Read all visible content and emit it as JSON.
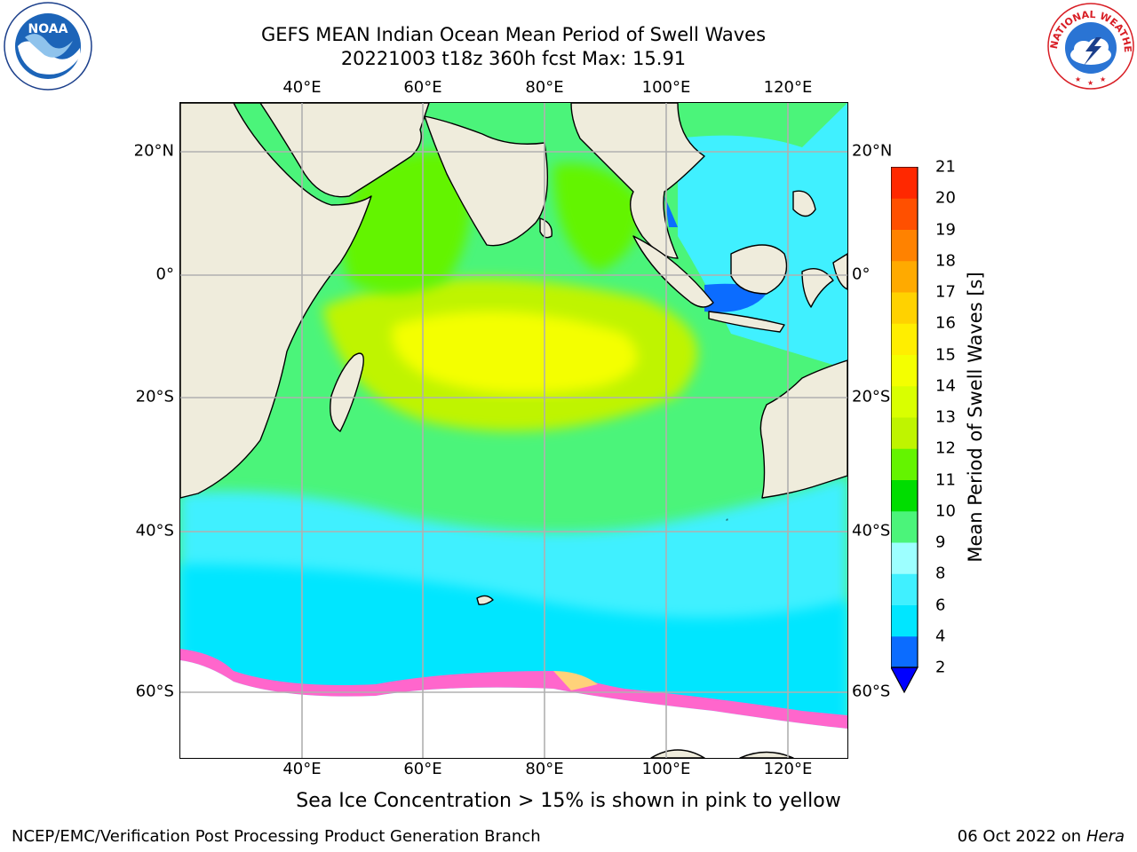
{
  "title": {
    "line1": "GEFS MEAN Indian Ocean Mean Period of Swell Waves",
    "line2": "20221003 t18z 360h fcst   Max: 15.91"
  },
  "map": {
    "lon_labels": [
      "40°E",
      "60°E",
      "80°E",
      "100°E",
      "120°E"
    ],
    "lat_labels": [
      "20°N",
      "0°",
      "20°S",
      "40°S",
      "60°S"
    ],
    "land_color": "#efecdc",
    "coastline_color": "#000000",
    "gridlines": true,
    "grid_color": "#b0b0b0"
  },
  "colorbar": {
    "label": "Mean Period of Swell Waves [s]",
    "ticks": [
      "2",
      "4",
      "6",
      "8",
      "9",
      "10",
      "11",
      "12",
      "13",
      "14",
      "15",
      "16",
      "17",
      "18",
      "19",
      "20",
      "21"
    ],
    "colors": [
      "#0b6cff",
      "#00e6ff",
      "#40f0ff",
      "#9dffff",
      "#4bf47a",
      "#00dd00",
      "#64f400",
      "#bff400",
      "#d9ff00",
      "#f4ff00",
      "#ffee00",
      "#ffd200",
      "#ffaa00",
      "#ff8200",
      "#ff5000",
      "#ff2800",
      "#ff0000"
    ],
    "extend_min_color": "#0000ff"
  },
  "footnote": "Sea Ice Concentration > 15% is shown in pink to yellow",
  "credit": "NCEP/EMC/Verification Post Processing Product Generation Branch",
  "datestamp": {
    "date": "06 Oct 2022 on",
    "host": "Hera"
  },
  "logos": {
    "noaa_text": "NOAA",
    "nws_text": "NATIONAL WEATHER SERVICE"
  }
}
